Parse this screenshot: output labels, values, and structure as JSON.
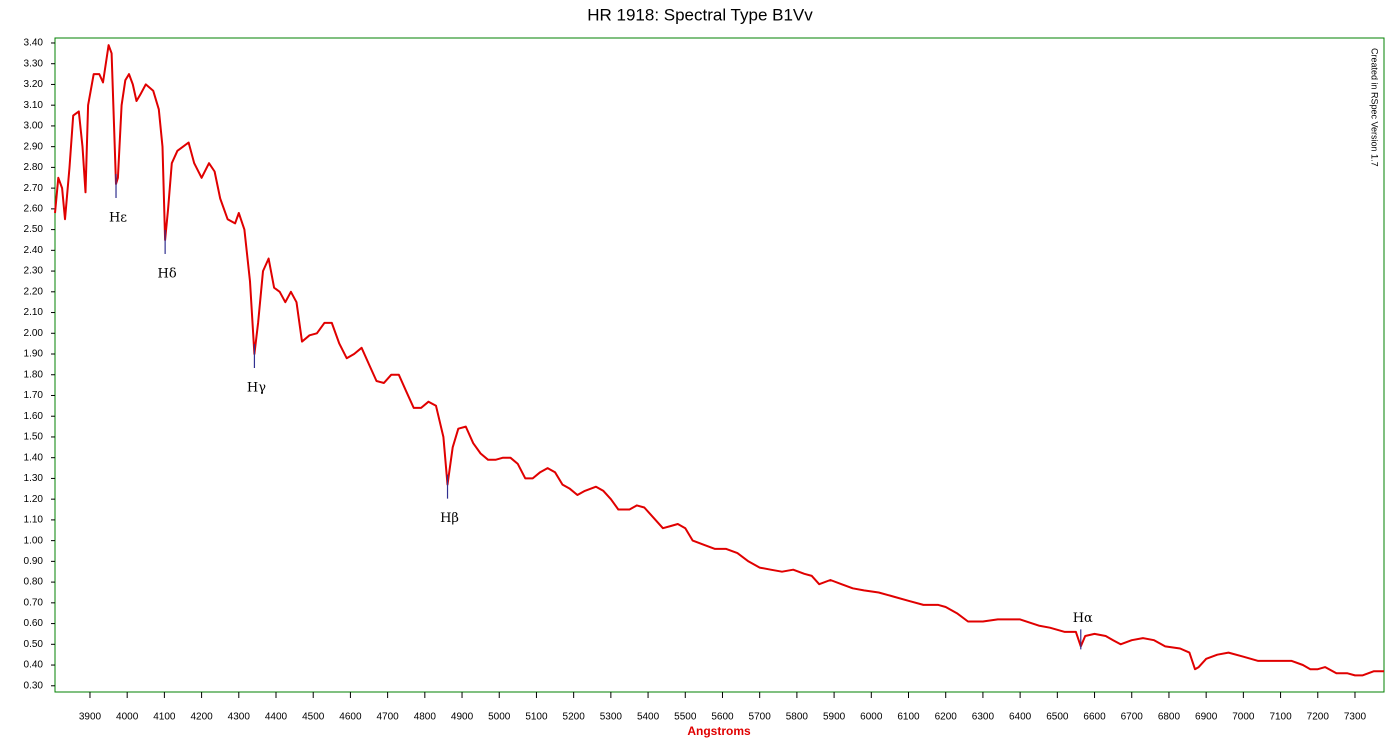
{
  "chart_data": {
    "type": "line",
    "title": "HR 1918: Spectral Type B1Vv",
    "x_label": "Angstroms",
    "side_note": "Created in RSpec Version 1.7",
    "frame_color": "#008000",
    "xlim": [
      3806,
      7378
    ],
    "ylim": [
      0.27,
      3.424
    ],
    "xticks": [
      3900,
      4000,
      4100,
      4200,
      4300,
      4400,
      4500,
      4600,
      4700,
      4800,
      4900,
      5000,
      5100,
      5200,
      5300,
      5400,
      5500,
      5600,
      5700,
      5800,
      5900,
      6000,
      6100,
      6200,
      6300,
      6400,
      6500,
      6600,
      6700,
      6800,
      6900,
      7000,
      7100,
      7200,
      7300
    ],
    "yticks": [
      {
        "value": 0.3,
        "label": "0.30"
      },
      {
        "value": 0.4,
        "label": "0.40"
      },
      {
        "value": 0.5,
        "label": "0.50"
      },
      {
        "value": 0.6,
        "label": "0.60"
      },
      {
        "value": 0.7,
        "label": "0.70"
      },
      {
        "value": 0.8,
        "label": "0.80"
      },
      {
        "value": 0.9,
        "label": "0.90"
      },
      {
        "value": 1.0,
        "label": "1.00"
      },
      {
        "value": 1.1,
        "label": "1.10"
      },
      {
        "value": 1.2,
        "label": "1.20"
      },
      {
        "value": 1.3,
        "label": "1.30"
      },
      {
        "value": 1.4,
        "label": "1.40"
      },
      {
        "value": 1.5,
        "label": "1.50"
      },
      {
        "value": 1.6,
        "label": "1.60"
      },
      {
        "value": 1.7,
        "label": "1.70"
      },
      {
        "value": 1.8,
        "label": "1.80"
      },
      {
        "value": 1.9,
        "label": "1.90"
      },
      {
        "value": 2.0,
        "label": "2.00"
      },
      {
        "value": 2.1,
        "label": "2.10"
      },
      {
        "value": 2.2,
        "label": "2.20"
      },
      {
        "value": 2.3,
        "label": "2.30"
      },
      {
        "value": 2.4,
        "label": "2.40"
      },
      {
        "value": 2.5,
        "label": "2.50"
      },
      {
        "value": 2.6,
        "label": "2.60"
      },
      {
        "value": 2.7,
        "label": "2.70"
      },
      {
        "value": 2.8,
        "label": "2.80"
      },
      {
        "value": 2.9,
        "label": "2.90"
      },
      {
        "value": 3.0,
        "label": "3.00"
      },
      {
        "value": 3.1,
        "label": "3.10"
      },
      {
        "value": 3.2,
        "label": "3.20"
      },
      {
        "value": 3.3,
        "label": "3.30"
      },
      {
        "value": 3.4,
        "label": "3.40"
      }
    ],
    "x": [
      3806,
      3815,
      3825,
      3833,
      3845,
      3855,
      3870,
      3880,
      3888,
      3895,
      3910,
      3925,
      3935,
      3950,
      3958,
      3970,
      3975,
      3985,
      3995,
      4005,
      4015,
      4025,
      4035,
      4050,
      4070,
      4085,
      4095,
      4102,
      4110,
      4120,
      4135,
      4150,
      4165,
      4180,
      4200,
      4220,
      4235,
      4250,
      4270,
      4290,
      4300,
      4315,
      4330,
      4342,
      4352,
      4365,
      4380,
      4395,
      4410,
      4425,
      4440,
      4455,
      4470,
      4490,
      4510,
      4530,
      4550,
      4570,
      4590,
      4610,
      4630,
      4650,
      4670,
      4690,
      4710,
      4730,
      4750,
      4770,
      4790,
      4810,
      4830,
      4850,
      4861,
      4875,
      4890,
      4910,
      4930,
      4950,
      4970,
      4990,
      5010,
      5030,
      5050,
      5070,
      5090,
      5110,
      5130,
      5150,
      5170,
      5190,
      5210,
      5230,
      5260,
      5280,
      5300,
      5320,
      5350,
      5370,
      5390,
      5420,
      5440,
      5460,
      5480,
      5500,
      5520,
      5550,
      5580,
      5610,
      5640,
      5670,
      5700,
      5730,
      5760,
      5790,
      5820,
      5840,
      5860,
      5890,
      5920,
      5950,
      5980,
      6020,
      6060,
      6100,
      6140,
      6180,
      6200,
      6230,
      6260,
      6300,
      6340,
      6400,
      6450,
      6480,
      6520,
      6550,
      6563,
      6575,
      6600,
      6630,
      6650,
      6670,
      6700,
      6730,
      6760,
      6790,
      6830,
      6855,
      6870,
      6880,
      6900,
      6930,
      6960,
      7000,
      7040,
      7080,
      7130,
      7160,
      7180,
      7200,
      7220,
      7250,
      7280,
      7300,
      7320,
      7350,
      7378
    ],
    "series": [
      {
        "color": "#e00000",
        "values": [
          2.58,
          2.75,
          2.7,
          2.55,
          2.8,
          3.05,
          3.07,
          2.9,
          2.68,
          3.1,
          3.25,
          3.25,
          3.21,
          3.39,
          3.35,
          2.72,
          2.75,
          3.1,
          3.22,
          3.25,
          3.2,
          3.12,
          3.15,
          3.2,
          3.17,
          3.08,
          2.9,
          2.45,
          2.6,
          2.82,
          2.88,
          2.9,
          2.92,
          2.82,
          2.75,
          2.82,
          2.78,
          2.65,
          2.55,
          2.53,
          2.58,
          2.5,
          2.25,
          1.9,
          2.05,
          2.3,
          2.36,
          2.22,
          2.2,
          2.15,
          2.2,
          2.15,
          1.96,
          1.99,
          2.0,
          2.05,
          2.05,
          1.95,
          1.88,
          1.9,
          1.93,
          1.85,
          1.77,
          1.76,
          1.8,
          1.8,
          1.72,
          1.64,
          1.64,
          1.67,
          1.65,
          1.5,
          1.27,
          1.45,
          1.54,
          1.55,
          1.47,
          1.42,
          1.39,
          1.39,
          1.4,
          1.4,
          1.37,
          1.3,
          1.3,
          1.33,
          1.35,
          1.33,
          1.27,
          1.25,
          1.22,
          1.24,
          1.26,
          1.24,
          1.2,
          1.15,
          1.15,
          1.17,
          1.16,
          1.1,
          1.06,
          1.07,
          1.08,
          1.06,
          1.0,
          0.98,
          0.96,
          0.96,
          0.94,
          0.9,
          0.87,
          0.86,
          0.85,
          0.86,
          0.84,
          0.83,
          0.79,
          0.81,
          0.79,
          0.77,
          0.76,
          0.75,
          0.73,
          0.71,
          0.69,
          0.69,
          0.68,
          0.65,
          0.61,
          0.61,
          0.62,
          0.62,
          0.59,
          0.58,
          0.56,
          0.56,
          0.49,
          0.54,
          0.55,
          0.54,
          0.52,
          0.5,
          0.52,
          0.53,
          0.52,
          0.49,
          0.48,
          0.46,
          0.38,
          0.39,
          0.43,
          0.45,
          0.46,
          0.44,
          0.42,
          0.42,
          0.42,
          0.4,
          0.38,
          0.38,
          0.39,
          0.36,
          0.36,
          0.35,
          0.35,
          0.37,
          0.37
        ]
      }
    ],
    "annotations": [
      {
        "text": "Hε",
        "x": 3970,
        "y": 2.72
      },
      {
        "text": "Hδ",
        "x": 4102,
        "y": 2.45
      },
      {
        "text": "Hγ",
        "x": 4342,
        "y": 1.9
      },
      {
        "text": "Hβ",
        "x": 4861,
        "y": 1.27
      },
      {
        "text": "Hα",
        "x": 6563,
        "y": 0.49
      }
    ]
  }
}
